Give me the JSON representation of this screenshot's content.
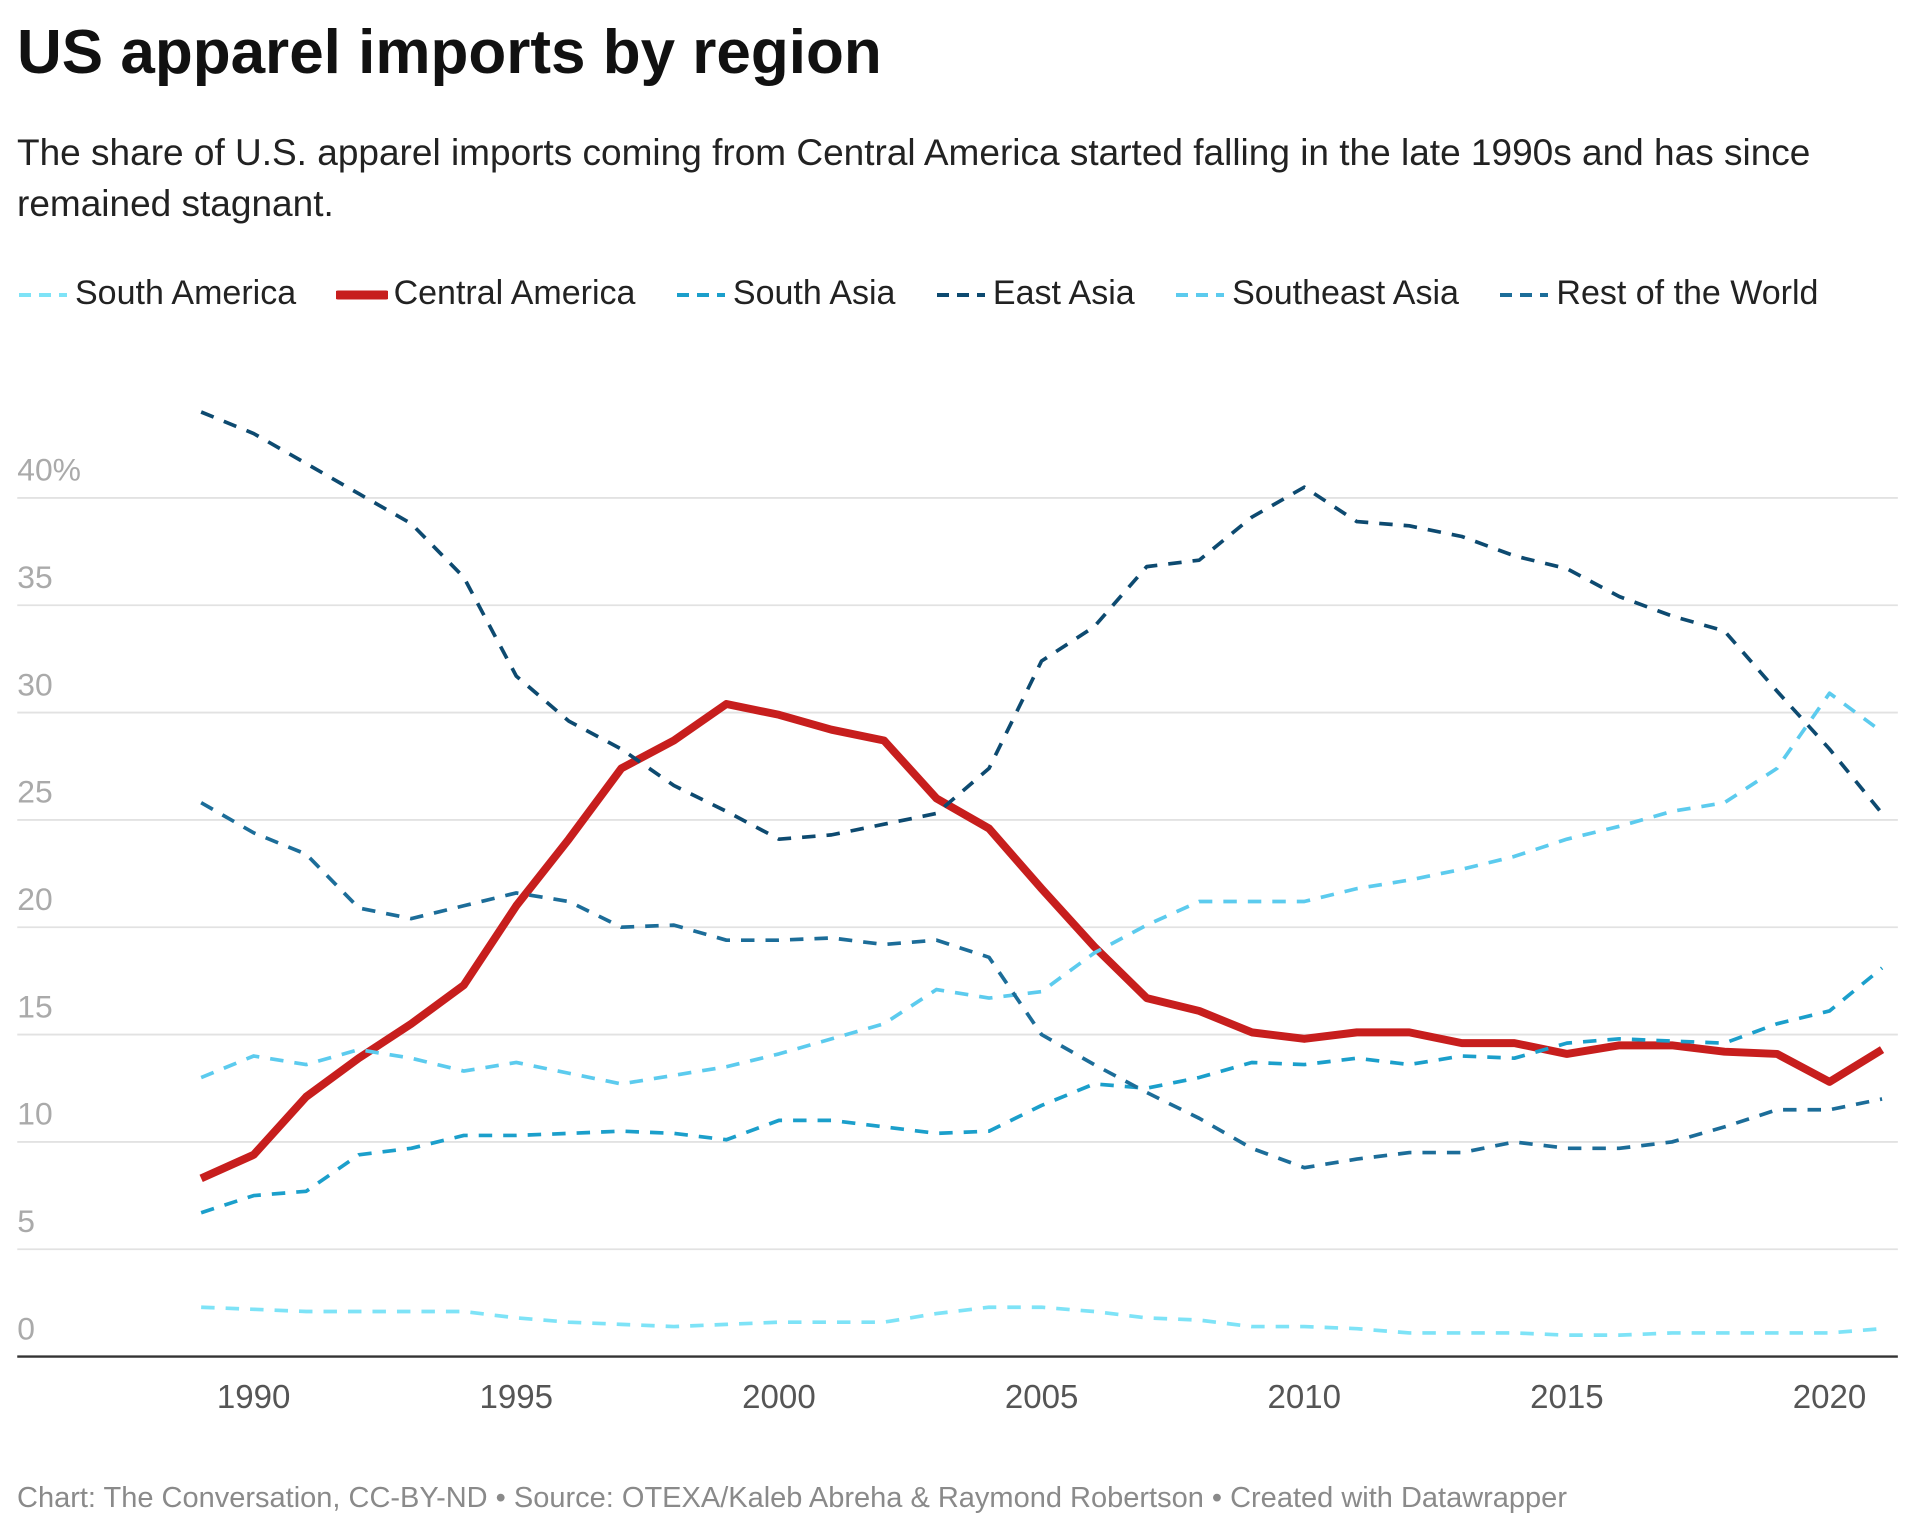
{
  "chart_data": {
    "type": "line",
    "title": "US apparel imports by region",
    "subtitle": "The share of U.S. apparel imports coming from Central America started falling in the late 1990s and has since remained stagnant.",
    "source": "Chart: The Conversation, CC-BY-ND • Source: OTEXA/Kaleb Abreha & Raymond Robertson • Created with Datawrapper",
    "x": [
      1989,
      1990,
      1991,
      1992,
      1993,
      1994,
      1995,
      1996,
      1997,
      1998,
      1999,
      2000,
      2001,
      2002,
      2003,
      2004,
      2005,
      2006,
      2007,
      2008,
      2009,
      2010,
      2011,
      2012,
      2013,
      2014,
      2015,
      2016,
      2017,
      2018,
      2019,
      2020,
      2021
    ],
    "xlim": [
      1985.5,
      2021.3
    ],
    "xticks": [
      1990,
      1995,
      2000,
      2005,
      2010,
      2015,
      2020
    ],
    "ylim": [
      0,
      45
    ],
    "yticks": [
      0,
      5,
      10,
      15,
      20,
      25,
      30,
      35,
      {
        "value": 40,
        "label": "40%"
      }
    ],
    "grid": true,
    "series": [
      {
        "name": "South America",
        "color": "#7ee3f7",
        "line_style": "dashed",
        "values": [
          2.3,
          2.2,
          2.1,
          2.1,
          2.1,
          2.1,
          1.8,
          1.6,
          1.5,
          1.4,
          1.5,
          1.6,
          1.6,
          1.6,
          2.0,
          2.3,
          2.3,
          2.1,
          1.8,
          1.7,
          1.4,
          1.4,
          1.3,
          1.1,
          1.1,
          1.1,
          1.0,
          1.0,
          1.1,
          1.1,
          1.1,
          1.1,
          1.3
        ]
      },
      {
        "name": "Central America",
        "color": "#c71e1d",
        "line_style": "solid",
        "values": [
          8.3,
          9.4,
          12.1,
          13.9,
          15.5,
          17.3,
          21.0,
          24.1,
          27.4,
          28.7,
          30.4,
          29.9,
          29.2,
          28.7,
          26.0,
          24.6,
          21.8,
          19.1,
          16.7,
          16.1,
          15.1,
          14.8,
          15.1,
          15.1,
          14.6,
          14.6,
          14.1,
          14.5,
          14.5,
          14.2,
          14.1,
          12.8,
          14.3
        ]
      },
      {
        "name": "South Asia",
        "color": "#1b9fcb",
        "line_style": "dashed",
        "values": [
          6.7,
          7.5,
          7.7,
          9.4,
          9.7,
          10.3,
          10.3,
          10.4,
          10.5,
          10.4,
          10.1,
          11.0,
          11.0,
          10.7,
          10.4,
          10.5,
          11.7,
          12.7,
          12.5,
          13.0,
          13.7,
          13.6,
          13.9,
          13.6,
          14.0,
          13.9,
          14.6,
          14.8,
          14.7,
          14.6,
          15.5,
          16.1,
          18.1
        ]
      },
      {
        "name": "East Asia",
        "color": "#0d4a70",
        "line_style": "dashed",
        "values": [
          44.0,
          43.0,
          41.6,
          40.2,
          38.8,
          36.3,
          31.7,
          29.6,
          28.3,
          26.6,
          25.4,
          24.1,
          24.3,
          24.8,
          25.3,
          27.4,
          32.4,
          34.0,
          36.8,
          37.1,
          39.1,
          40.5,
          38.9,
          38.7,
          38.2,
          37.3,
          36.7,
          35.4,
          34.5,
          33.8,
          31.0,
          28.3,
          25.3
        ]
      },
      {
        "name": "Southeast Asia",
        "color": "#5ccbee",
        "line_style": "dashed",
        "values": [
          13.0,
          14.0,
          13.6,
          14.3,
          13.9,
          13.3,
          13.7,
          13.2,
          12.7,
          13.1,
          13.5,
          14.1,
          14.8,
          15.5,
          17.1,
          16.7,
          17.0,
          18.8,
          20.1,
          21.2,
          21.2,
          21.2,
          21.8,
          22.2,
          22.7,
          23.3,
          24.1,
          24.7,
          25.4,
          25.8,
          27.4,
          30.9,
          29.1
        ]
      },
      {
        "name": "Rest of the World",
        "color": "#1c6d99",
        "line_style": "dashed",
        "values": [
          25.8,
          24.4,
          23.4,
          20.9,
          20.4,
          21.0,
          21.6,
          21.2,
          20.0,
          20.1,
          19.4,
          19.4,
          19.5,
          19.2,
          19.4,
          18.6,
          15.0,
          13.6,
          12.3,
          11.1,
          9.7,
          8.8,
          9.2,
          9.5,
          9.5,
          10.0,
          9.7,
          9.7,
          10.0,
          10.7,
          11.5,
          11.5,
          12.0
        ]
      }
    ]
  }
}
